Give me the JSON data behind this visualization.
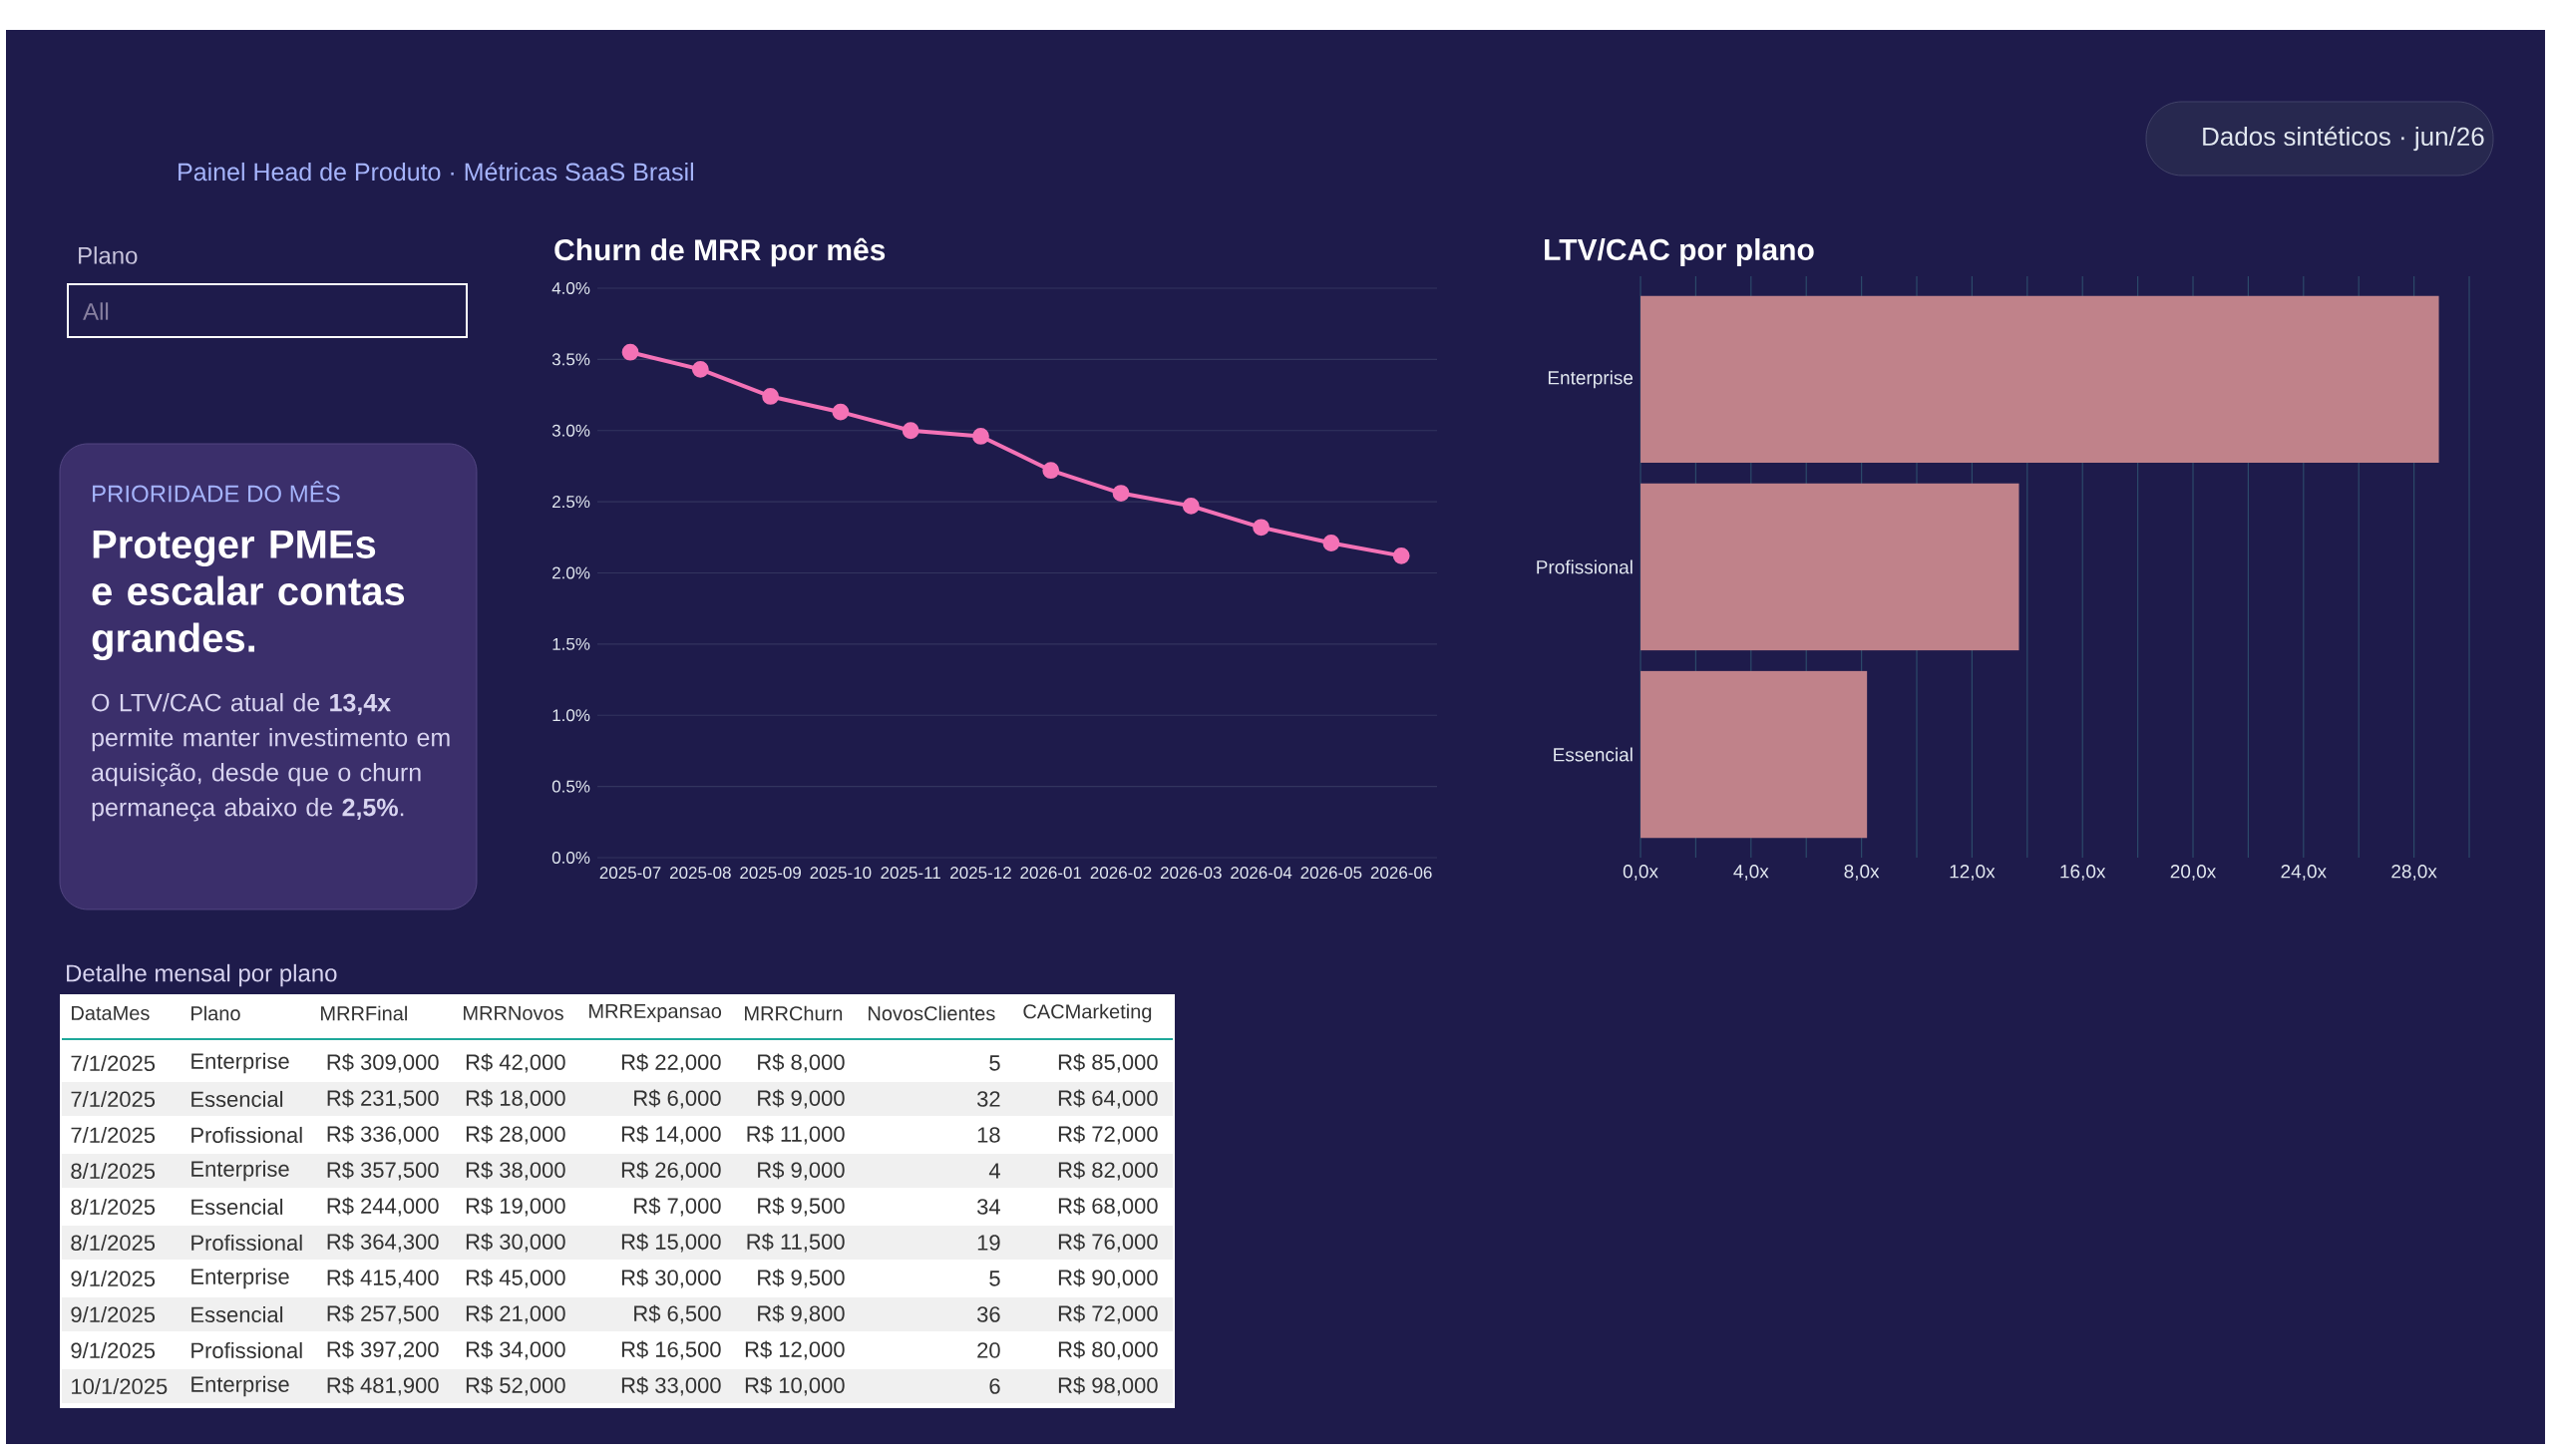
{
  "chart_data": [
    {
      "type": "other",
      "subtitle": "Painel Head de Produto · Métricas SaaS Brasil",
      "annotations": [
        "Dados sintéticos · jun/26"
      ]
    },
    {
      "type": "other",
      "title": "Plano",
      "annotations": [
        "All"
      ]
    },
    {
      "type": "other",
      "subtitle": "PRIORIDADE DO MÊS",
      "title": "Proteger PMEs e escalar contas grandes.",
      "annotations": [
        "O LTV/CAC atual de **13,4x** permite manter investimento em aquisição, desde que o churn permaneça abaixo de **2,5%**."
      ]
    },
    {
      "type": "line",
      "title": "Churn de MRR por mês",
      "categories": [
        "2025-07",
        "2025-08",
        "2025-09",
        "2025-10",
        "2025-11",
        "2025-12",
        "2026-01",
        "2026-02",
        "2026-03",
        "2026-04",
        "2026-05",
        "2026-06"
      ],
      "values": [
        3.55,
        3.43,
        3.24,
        3.13,
        3.0,
        2.96,
        2.72,
        2.56,
        2.47,
        2.32,
        2.21,
        2.12
      ],
      "color": "#f472b6",
      "marker": "circle",
      "grid": "y",
      "ylim": [
        0,
        4
      ],
      "yticks": [
        {
          "value": 0,
          "label": "0.0%"
        },
        {
          "value": 0.5,
          "label": "0.5%"
        },
        {
          "value": 1,
          "label": "1.0%"
        },
        {
          "value": 1.5,
          "label": "1.5%"
        },
        {
          "value": 2,
          "label": "2.0%"
        },
        {
          "value": 2.5,
          "label": "2.5%"
        },
        {
          "value": 3,
          "label": "3.0%"
        },
        {
          "value": 3.5,
          "label": "3.5%"
        },
        {
          "value": 4,
          "label": "4.0%"
        }
      ]
    },
    {
      "type": "bar",
      "orientation": "horizontal",
      "title": "LTV/CAC por plano",
      "categories": [
        "Enterprise",
        "Profissional",
        "Essencial"
      ],
      "values": [
        28.9,
        13.7,
        8.2
      ],
      "colors": [
        "#c0828a",
        "#c0828a",
        "#c0828a"
      ],
      "grid": "x",
      "xlim": [
        0,
        30
      ],
      "xticks": [
        {
          "value": 0,
          "label": "0,0x"
        },
        {
          "value": 2,
          "label": null
        },
        {
          "value": 4,
          "label": "4,0x"
        },
        {
          "value": 6,
          "label": null
        },
        {
          "value": 8,
          "label": "8,0x"
        },
        {
          "value": 10,
          "label": null
        },
        {
          "value": 12,
          "label": "12,0x"
        },
        {
          "value": 14,
          "label": null
        },
        {
          "value": 16,
          "label": "16,0x"
        },
        {
          "value": 18,
          "label": null
        },
        {
          "value": 20,
          "label": "20,0x"
        },
        {
          "value": 22,
          "label": null
        },
        {
          "value": 24,
          "label": "24,0x"
        },
        {
          "value": 26,
          "label": null
        },
        {
          "value": 28,
          "label": "28,0x"
        },
        {
          "value": 30,
          "label": null
        }
      ]
    },
    {
      "type": "other",
      "title": "Detalhe mensal por plano",
      "categories": [
        "DataMes",
        "Plano",
        "MRRFinal",
        "MRRNovos",
        "MRRExpansao",
        "MRRChurn",
        "NovosClientes",
        "CACMarketing"
      ],
      "cell_labels": [
        [
          "7/1/2025",
          "Enterprise",
          "R$ 309,000",
          "R$ 42,000",
          "R$ 22,000",
          "R$ 8,000",
          "5",
          "R$ 85,000"
        ],
        [
          "7/1/2025",
          "Essencial",
          "R$ 231,500",
          "R$ 18,000",
          "R$ 6,000",
          "R$ 9,000",
          "32",
          "R$ 64,000"
        ],
        [
          "7/1/2025",
          "Profissional",
          "R$ 336,000",
          "R$ 28,000",
          "R$ 14,000",
          "R$ 11,000",
          "18",
          "R$ 72,000"
        ],
        [
          "8/1/2025",
          "Enterprise",
          "R$ 357,500",
          "R$ 38,000",
          "R$ 26,000",
          "R$ 9,000",
          "4",
          "R$ 82,000"
        ],
        [
          "8/1/2025",
          "Essencial",
          "R$ 244,000",
          "R$ 19,000",
          "R$ 7,000",
          "R$ 9,500",
          "34",
          "R$ 68,000"
        ],
        [
          "8/1/2025",
          "Profissional",
          "R$ 364,300",
          "R$ 30,000",
          "R$ 15,000",
          "R$ 11,500",
          "19",
          "R$ 76,000"
        ],
        [
          "9/1/2025",
          "Enterprise",
          "R$ 415,400",
          "R$ 45,000",
          "R$ 30,000",
          "R$ 9,500",
          "5",
          "R$ 90,000"
        ],
        [
          "9/1/2025",
          "Essencial",
          "R$ 257,500",
          "R$ 21,000",
          "R$ 6,500",
          "R$ 9,800",
          "36",
          "R$ 72,000"
        ],
        [
          "9/1/2025",
          "Profissional",
          "R$ 397,200",
          "R$ 34,000",
          "R$ 16,500",
          "R$ 12,000",
          "20",
          "R$ 80,000"
        ],
        [
          "10/1/2025",
          "Enterprise",
          "R$ 481,900",
          "R$ 52,000",
          "R$ 33,000",
          "R$ 10,000",
          "6",
          "R$ 98,000"
        ]
      ]
    }
  ]
}
